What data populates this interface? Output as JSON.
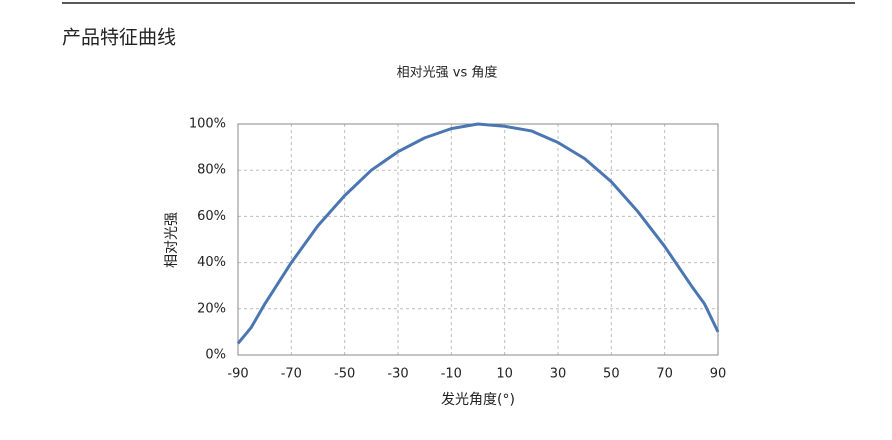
{
  "header": {
    "title": "产品特征曲线"
  },
  "chart_data": {
    "type": "line",
    "title": "相对光强 vs 角度",
    "x_label": "发光角度(°)",
    "y_label": "相对光强",
    "x": [
      -90,
      -85,
      -80,
      -70,
      -60,
      -50,
      -40,
      -30,
      -20,
      -10,
      0,
      10,
      20,
      30,
      40,
      50,
      60,
      70,
      80,
      85,
      90
    ],
    "values": [
      5,
      12,
      22,
      40,
      56,
      69,
      80,
      88,
      94,
      98,
      100,
      99,
      97,
      92,
      85,
      75,
      62,
      47,
      30,
      22,
      10
    ],
    "color": "#4a76b2",
    "xlim": [
      -90,
      90
    ],
    "xticks": [
      -90,
      -70,
      -50,
      -30,
      -10,
      10,
      30,
      50,
      70,
      90
    ],
    "ylim": [
      0,
      100
    ],
    "yticks": [
      {
        "value": 0,
        "label": "0%"
      },
      {
        "value": 20,
        "label": "20%"
      },
      {
        "value": 40,
        "label": "40%"
      },
      {
        "value": 60,
        "label": "60%"
      },
      {
        "value": 80,
        "label": "80%"
      },
      {
        "value": 100,
        "label": "100%"
      }
    ],
    "grid": true
  }
}
